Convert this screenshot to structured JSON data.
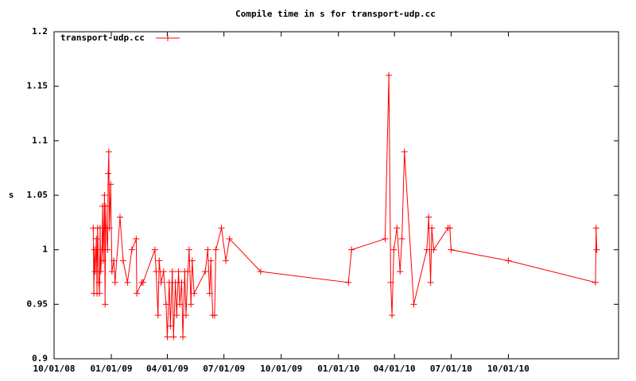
{
  "chart_data": {
    "type": "line",
    "title": "Compile time in s for transport-udp.cc",
    "y_label": "s",
    "legend": "top-left",
    "xlim": [
      "2008-10-01",
      "2011-03-27"
    ],
    "xticks": [
      {
        "value": "2008-10-01",
        "label": "10/01/08"
      },
      {
        "value": "2009-01-01",
        "label": "01/01/09"
      },
      {
        "value": "2009-04-01",
        "label": "04/01/09"
      },
      {
        "value": "2009-07-01",
        "label": "07/01/09"
      },
      {
        "value": "2009-10-01",
        "label": "10/01/09"
      },
      {
        "value": "2010-01-01",
        "label": "01/01/10"
      },
      {
        "value": "2010-04-01",
        "label": "04/01/10"
      },
      {
        "value": "2010-07-01",
        "label": "07/01/10"
      },
      {
        "value": "2010-10-01",
        "label": "10/01/10"
      }
    ],
    "ylim": [
      0.9,
      1.2
    ],
    "yticks": [
      0.9,
      0.95,
      1,
      1.05,
      1.1,
      1.15,
      1.2
    ],
    "series": [
      {
        "name": "transport-udp.cc",
        "color": "#ff0000",
        "x": [
          "2008-12-03",
          "2008-12-04",
          "2008-12-05",
          "2008-12-06",
          "2008-12-08",
          "2008-12-09",
          "2008-12-10",
          "2008-12-12",
          "2008-12-13",
          "2008-12-14",
          "2008-12-15",
          "2008-12-17",
          "2008-12-18",
          "2008-12-19",
          "2008-12-21",
          "2008-12-22",
          "2008-12-23",
          "2008-12-24",
          "2008-12-26",
          "2008-12-27",
          "2008-12-28",
          "2008-12-29",
          "2008-12-31",
          "2009-01-02",
          "2009-01-05",
          "2009-01-07",
          "2009-01-15",
          "2009-01-20",
          "2009-01-27",
          "2009-02-03",
          "2009-02-10",
          "2009-02-11",
          "2009-02-19",
          "2009-02-21",
          "2009-03-12",
          "2009-03-14",
          "2009-03-17",
          "2009-03-19",
          "2009-03-22",
          "2009-03-26",
          "2009-03-30",
          "2009-04-01",
          "2009-04-04",
          "2009-04-06",
          "2009-04-09",
          "2009-04-11",
          "2009-04-14",
          "2009-04-16",
          "2009-04-19",
          "2009-04-21",
          "2009-04-24",
          "2009-04-26",
          "2009-04-29",
          "2009-05-01",
          "2009-05-04",
          "2009-05-06",
          "2009-05-09",
          "2009-05-11",
          "2009-05-14",
          "2009-06-01",
          "2009-06-05",
          "2009-06-08",
          "2009-06-10",
          "2009-06-13",
          "2009-06-16",
          "2009-06-18",
          "2009-06-27",
          "2009-07-04",
          "2009-07-10",
          "2009-08-29",
          "2010-01-17",
          "2010-01-22",
          "2010-03-17",
          "2010-03-23",
          "2010-03-26",
          "2010-03-28",
          "2010-03-31",
          "2010-04-05",
          "2010-04-10",
          "2010-04-13",
          "2010-04-17",
          "2010-05-02",
          "2010-05-23",
          "2010-05-26",
          "2010-05-29",
          "2010-05-31",
          "2010-06-03",
          "2010-06-26",
          "2010-06-29",
          "2010-07-01",
          "2010-10-01",
          "2011-02-18",
          "2011-02-19",
          "2011-02-20"
        ],
        "values": [
          1.02,
          0.96,
          1.0,
          0.98,
          1.01,
          0.96,
          1.02,
          0.97,
          0.96,
          1.02,
          0.98,
          1.0,
          1.04,
          0.99,
          1.05,
          0.95,
          1.04,
          1.02,
          1.0,
          1.07,
          1.09,
          1.02,
          1.06,
          0.98,
          0.99,
          0.97,
          1.03,
          0.99,
          0.97,
          1.0,
          1.01,
          0.96,
          0.97,
          0.97,
          1.0,
          0.98,
          0.94,
          0.99,
          0.97,
          0.98,
          0.95,
          0.92,
          0.97,
          0.93,
          0.98,
          0.92,
          0.97,
          0.94,
          0.98,
          0.95,
          0.97,
          0.92,
          0.98,
          0.94,
          0.98,
          1.0,
          0.95,
          0.99,
          0.96,
          0.98,
          1.0,
          0.96,
          0.99,
          0.94,
          0.94,
          1.0,
          1.02,
          0.99,
          1.01,
          0.98,
          0.97,
          1.0,
          1.01,
          1.16,
          0.97,
          0.94,
          1.0,
          1.02,
          0.98,
          1.01,
          1.09,
          0.95,
          1.0,
          1.03,
          0.97,
          1.02,
          1.0,
          1.02,
          1.02,
          1.0,
          0.99,
          0.97,
          1.02,
          1.0
        ]
      }
    ]
  }
}
